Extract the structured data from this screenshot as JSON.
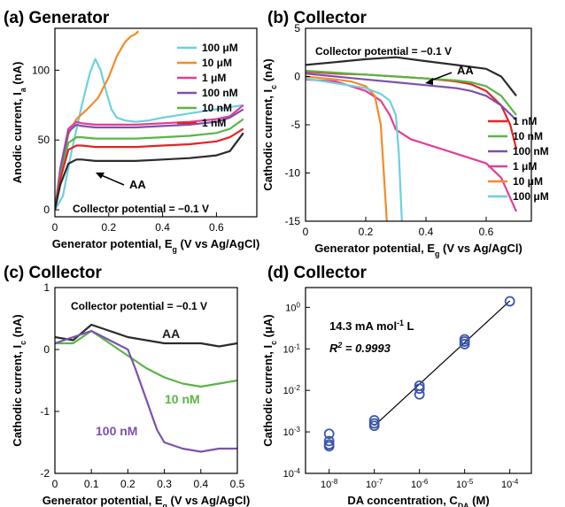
{
  "figure": {
    "panels": [
      {
        "label": "(a) Generator"
      },
      {
        "label": "(b) Collector"
      },
      {
        "label": "(c) Collector"
      },
      {
        "label": "(d) Collector"
      }
    ]
  },
  "chart_data": [
    {
      "type": "line",
      "title": "(a) Generator",
      "xlabel": "Generator potential, E_g (V vs Ag/AgCl)",
      "ylabel": "Anodic current, I_a (nA)",
      "xlim": [
        0,
        0.75
      ],
      "ylim": [
        -5,
        130
      ],
      "xticks": [
        0,
        0.2,
        0.4,
        0.6
      ],
      "yticks": [
        0,
        50,
        100
      ],
      "grid": false,
      "legend": "top-right",
      "annotations": [
        "Collector potential = −0.1 V",
        "AA"
      ],
      "series": [
        {
          "name": "100 μM",
          "color": "#6dd0df",
          "x": [
            0,
            0.03,
            0.06,
            0.1,
            0.13,
            0.15,
            0.17,
            0.19,
            0.21,
            0.23,
            0.26,
            0.3,
            0.35,
            0.4,
            0.5,
            0.6,
            0.7
          ],
          "y": [
            0,
            10,
            40,
            75,
            98,
            108,
            100,
            85,
            72,
            66,
            64,
            63,
            64,
            66,
            69,
            72,
            75
          ]
        },
        {
          "name": "10 μM",
          "color": "#f28c28",
          "x": [
            0,
            0.02,
            0.05,
            0.08,
            0.12,
            0.16,
            0.2,
            0.23,
            0.26,
            0.28,
            0.3,
            0.31
          ],
          "y": [
            0,
            25,
            54,
            65,
            72,
            80,
            95,
            110,
            120,
            124,
            126,
            128
          ]
        },
        {
          "name": "1 μM",
          "color": "#e43d96",
          "x": [
            0,
            0.02,
            0.05,
            0.08,
            0.1,
            0.15,
            0.2,
            0.3,
            0.4,
            0.5,
            0.6,
            0.65,
            0.7
          ],
          "y": [
            0,
            30,
            58,
            63,
            62,
            61,
            61,
            61,
            62,
            63,
            65,
            67,
            75
          ]
        },
        {
          "name": "100 nM",
          "color": "#7b52ae",
          "x": [
            0,
            0.02,
            0.05,
            0.08,
            0.1,
            0.15,
            0.2,
            0.3,
            0.4,
            0.5,
            0.6,
            0.65,
            0.7
          ],
          "y": [
            0,
            28,
            56,
            61,
            60,
            59,
            59,
            59,
            60,
            61,
            63,
            66,
            72
          ]
        },
        {
          "name": "10 nM",
          "color": "#5ab546",
          "x": [
            0,
            0.02,
            0.05,
            0.08,
            0.1,
            0.15,
            0.2,
            0.3,
            0.4,
            0.5,
            0.6,
            0.65,
            0.7
          ],
          "y": [
            0,
            24,
            48,
            52,
            52,
            51,
            51,
            51,
            52,
            53,
            55,
            58,
            65
          ]
        },
        {
          "name": "1 nM",
          "color": "#e52325",
          "x": [
            0,
            0.02,
            0.05,
            0.08,
            0.1,
            0.15,
            0.2,
            0.3,
            0.4,
            0.5,
            0.6,
            0.65,
            0.7
          ],
          "y": [
            0,
            22,
            43,
            46,
            46,
            45,
            45,
            45,
            46,
            47,
            49,
            52,
            58
          ]
        },
        {
          "name": "AA",
          "color": "#2b2b2b",
          "x": [
            0,
            0.02,
            0.05,
            0.08,
            0.1,
            0.15,
            0.2,
            0.3,
            0.4,
            0.5,
            0.6,
            0.65,
            0.7
          ],
          "y": [
            0,
            18,
            33,
            36,
            36,
            35,
            35,
            35,
            36,
            37,
            39,
            42,
            55
          ]
        }
      ]
    },
    {
      "type": "line",
      "title": "(b) Collector",
      "xlabel": "Generator potential, E_g (V vs Ag/AgCl)",
      "ylabel": "Cathodic current, I_c (nA)",
      "xlim": [
        0,
        0.75
      ],
      "ylim": [
        -15,
        5
      ],
      "xticks": [
        0,
        0.2,
        0.4,
        0.6
      ],
      "yticks": [
        -15,
        -10,
        -5,
        0,
        5
      ],
      "grid": false,
      "legend": "right",
      "annotations": [
        "Collector potential = −0.1 V",
        "AA"
      ],
      "series": [
        {
          "name": "1 nM",
          "color": "#e52325",
          "x": [
            0,
            0.1,
            0.2,
            0.3,
            0.4,
            0.5,
            0.55,
            0.6,
            0.65,
            0.68,
            0.7
          ],
          "y": [
            0.5,
            0.3,
            0.2,
            0,
            -0.2,
            -0.5,
            -0.8,
            -1.5,
            -3,
            -5,
            -7.5
          ]
        },
        {
          "name": "10 nM",
          "color": "#5ab546",
          "x": [
            0,
            0.1,
            0.2,
            0.3,
            0.4,
            0.5,
            0.55,
            0.6,
            0.65,
            0.7
          ],
          "y": [
            0.6,
            0.4,
            0.2,
            0,
            -0.2,
            -0.4,
            -0.6,
            -1,
            -2,
            -4
          ]
        },
        {
          "name": "100 nM",
          "color": "#7b52ae",
          "x": [
            0,
            0.1,
            0.2,
            0.3,
            0.4,
            0.5,
            0.55,
            0.6,
            0.65,
            0.7
          ],
          "y": [
            0.3,
            0,
            -0.3,
            -0.6,
            -0.9,
            -1.2,
            -1.5,
            -2,
            -3,
            -4.5
          ]
        },
        {
          "name": "1 μM",
          "color": "#e43d96",
          "x": [
            0,
            0.1,
            0.2,
            0.25,
            0.28,
            0.3,
            0.35,
            0.4,
            0.5,
            0.6,
            0.65,
            0.7
          ],
          "y": [
            -0.3,
            -0.5,
            -1.5,
            -2.5,
            -4,
            -5.5,
            -6.5,
            -7,
            -8,
            -9,
            -10.5,
            -14
          ]
        },
        {
          "name": "10 μM",
          "color": "#f28c28",
          "x": [
            0,
            0.1,
            0.15,
            0.2,
            0.23,
            0.25,
            0.26,
            0.27
          ],
          "y": [
            0,
            -0.3,
            -0.5,
            -1,
            -2,
            -5,
            -10,
            -15
          ]
        },
        {
          "name": "100 μM",
          "color": "#6dd0df",
          "x": [
            0,
            0.1,
            0.2,
            0.25,
            0.28,
            0.3,
            0.31,
            0.32
          ],
          "y": [
            -0.2,
            -0.7,
            -1.2,
            -1.8,
            -2.5,
            -4,
            -8,
            -15
          ]
        },
        {
          "name": "AA",
          "color": "#2b2b2b",
          "x": [
            0,
            0.1,
            0.2,
            0.3,
            0.4,
            0.5,
            0.6,
            0.65,
            0.7
          ],
          "y": [
            1.2,
            1.5,
            1.8,
            2,
            1.6,
            1.2,
            0.8,
            0,
            -2
          ]
        }
      ]
    },
    {
      "type": "line",
      "title": "(c) Collector",
      "xlabel": "Generator potential, E_g (V vs Ag/AgCl)",
      "ylabel": "Cathodic current, I_c (nA)",
      "xlim": [
        0,
        0.5
      ],
      "ylim": [
        -2,
        1
      ],
      "xticks": [
        0,
        0.1,
        0.2,
        0.3,
        0.4,
        0.5
      ],
      "yticks": [
        -2,
        -1,
        0,
        1
      ],
      "grid": false,
      "annotations": [
        "Collector potential = −0.1 V",
        "AA",
        "10 nM",
        "100 nM"
      ],
      "series": [
        {
          "name": "AA",
          "color": "#2b2b2b",
          "x": [
            0,
            0.05,
            0.1,
            0.15,
            0.2,
            0.25,
            0.3,
            0.35,
            0.4,
            0.45,
            0.5
          ],
          "y": [
            0.2,
            0.15,
            0.4,
            0.3,
            0.2,
            0.15,
            0.1,
            0.1,
            0.1,
            0.05,
            0.1
          ]
        },
        {
          "name": "10 nM",
          "color": "#5ab546",
          "x": [
            0,
            0.05,
            0.1,
            0.15,
            0.2,
            0.25,
            0.3,
            0.35,
            0.4,
            0.45,
            0.5
          ],
          "y": [
            0.1,
            0.1,
            0.3,
            0.1,
            -0.1,
            -0.3,
            -0.45,
            -0.55,
            -0.6,
            -0.55,
            -0.5
          ]
        },
        {
          "name": "100 nM",
          "color": "#7b52ae",
          "x": [
            0,
            0.05,
            0.1,
            0.15,
            0.2,
            0.22,
            0.25,
            0.28,
            0.3,
            0.35,
            0.4,
            0.45,
            0.5
          ],
          "y": [
            0.1,
            0.2,
            0.3,
            0.15,
            0,
            -0.3,
            -0.8,
            -1.3,
            -1.5,
            -1.6,
            -1.65,
            -1.6,
            -1.6
          ]
        }
      ]
    },
    {
      "type": "scatter",
      "title": "(d) Collector",
      "xlabel": "DA concentration, C_DA (M)",
      "ylabel": "Cathodic current, I_c (μA)",
      "x_scale": "log",
      "y_scale": "log",
      "xlim": [
        3e-09,
        0.0003
      ],
      "ylim": [
        0.0001,
        3
      ],
      "xticks": [
        "10^-8",
        "10^-7",
        "10^-6",
        "10^-5",
        "10^-4"
      ],
      "yticks": [
        "10^-4",
        "10^-3",
        "10^-2",
        "10^-1",
        "10^0"
      ],
      "grid": false,
      "annotations": [
        "14.3 mA mol^-1 L",
        "R^2 = 0.9993"
      ],
      "series": [
        {
          "color": "#3a56a8",
          "x": [
            1e-08,
            1e-08,
            1e-08,
            1e-08,
            1e-07,
            1e-07,
            1e-07,
            1e-06,
            1e-06,
            1e-06,
            1e-05,
            1e-05,
            1e-05,
            0.0001
          ],
          "y": [
            0.0009,
            0.0006,
            0.0005,
            0.00045,
            0.0019,
            0.0016,
            0.0014,
            0.013,
            0.011,
            0.008,
            0.17,
            0.15,
            0.13,
            1.4
          ]
        }
      ],
      "fit": {
        "color": "#000000",
        "x": [
          1e-07,
          0.0001
        ],
        "y": [
          0.0014,
          1.43
        ]
      }
    }
  ]
}
